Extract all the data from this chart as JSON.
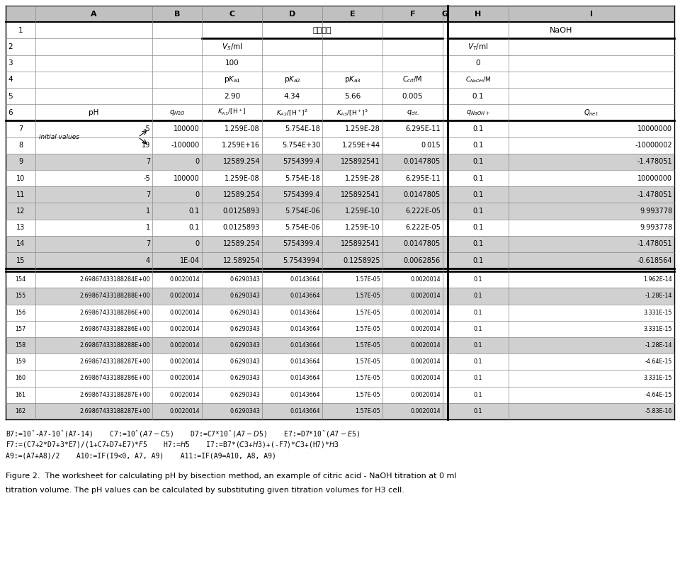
{
  "col_labels": [
    "",
    "A",
    "B",
    "C",
    "D",
    "E",
    "F",
    "G",
    "H",
    "I"
  ],
  "formula_lines": [
    "B7:=10ˆ-A7-10ˆ(A7-14)    C7:=10ˆ($A7-C$5)    D7:=C7*10ˆ($A7-D$5)    E7:=D7*10ˆ($A7-E$5)",
    "F7:=(C7+2*D7+3*E7)/(1+C7+D7+E7)*$F$5    H7:=$H$5    I7:=B7*($C$3+$H$3)+(-F7)*$C$3+(H7)*$H$3",
    "A9:=(A7+A8)/2    A10:=IF(I9<0, A7, A9)    A11:=IF(A9=A10, A8, A9)"
  ],
  "caption_line1": "Figure 2.  The worksheet for calculating pH by bisection method, an example of citric acid - NaOH titration at 0 ml",
  "caption_line2": "titration volume. The pH values can be calculated by substituting given titration volumes for H3 cell.",
  "rows_7_15_bg": [
    "#ffffff",
    "#ffffff",
    "#d0d0d0",
    "#ffffff",
    "#d0d0d0",
    "#d0d0d0",
    "#ffffff",
    "#d0d0d0",
    "#d0d0d0"
  ],
  "rows_7_15": [
    [
      "7",
      "-5",
      "100000",
      "1.259E-08",
      "5.754E-18",
      "1.259E-28",
      "6.295E-11",
      "",
      "0.1",
      "10000000"
    ],
    [
      "8",
      "19",
      "-100000",
      "1.259E+16",
      "5.754E+30",
      "1.259E+44",
      "0.015",
      "",
      "0.1",
      "-10000002"
    ],
    [
      "9",
      "7",
      "0",
      "12589.254",
      "5754399.4",
      "125892541",
      "0.0147805",
      "",
      "0.1",
      "-1.478051"
    ],
    [
      "10",
      "-5",
      "100000",
      "1.259E-08",
      "5.754E-18",
      "1.259E-28",
      "6.295E-11",
      "",
      "0.1",
      "10000000"
    ],
    [
      "11",
      "7",
      "0",
      "12589.254",
      "5754399.4",
      "125892541",
      "0.0147805",
      "",
      "0.1",
      "-1.478051"
    ],
    [
      "12",
      "1",
      "0.1",
      "0.0125893",
      "5.754E-06",
      "1.259E-10",
      "6.222E-05",
      "",
      "0.1",
      "9.993778"
    ],
    [
      "13",
      "1",
      "0.1",
      "0.0125893",
      "5.754E-06",
      "1.259E-10",
      "6.222E-05",
      "",
      "0.1",
      "9.993778"
    ],
    [
      "14",
      "7",
      "0",
      "12589.254",
      "5754399.4",
      "125892541",
      "0.0147805",
      "",
      "0.1",
      "-1.478051"
    ],
    [
      "15",
      "4",
      "1E-04",
      "12.589254",
      "5.7543994",
      "0.1258925",
      "0.0062856",
      "",
      "0.1",
      "-0.618564"
    ]
  ],
  "rows_154_162_bg": [
    "#ffffff",
    "#d0d0d0",
    "#ffffff",
    "#ffffff",
    "#d0d0d0",
    "#ffffff",
    "#ffffff",
    "#ffffff",
    "#d0d0d0"
  ],
  "rows_154_162": [
    [
      "154",
      "2.69867433188284E+00",
      "0.0020014",
      "0.6290343",
      "0.0143664",
      "1.57E-05",
      "0.0020014",
      "",
      "0.1",
      "1.962E-14"
    ],
    [
      "155",
      "2.69867433188288E+00",
      "0.0020014",
      "0.6290343",
      "0.0143664",
      "1.57E-05",
      "0.0020014",
      "",
      "0.1",
      "-1.28E-14"
    ],
    [
      "156",
      "2.69867433188286E+00",
      "0.0020014",
      "0.6290343",
      "0.0143664",
      "1.57E-05",
      "0.0020014",
      "",
      "0.1",
      "3.331E-15"
    ],
    [
      "157",
      "2.69867433188286E+00",
      "0.0020014",
      "0.6290343",
      "0.0143664",
      "1.57E-05",
      "0.0020014",
      "",
      "0.1",
      "3.331E-15"
    ],
    [
      "158",
      "2.69867433188288E+00",
      "0.0020014",
      "0.6290343",
      "0.0143664",
      "1.57E-05",
      "0.0020014",
      "",
      "0.1",
      "-1.28E-14"
    ],
    [
      "159",
      "2.69867433188287E+00",
      "0.0020014",
      "0.6290343",
      "0.0143664",
      "1.57E-05",
      "0.0020014",
      "",
      "0.1",
      "-4.64E-15"
    ],
    [
      "160",
      "2.69867433188286E+00",
      "0.0020014",
      "0.6290343",
      "0.0143664",
      "1.57E-05",
      "0.0020014",
      "",
      "0.1",
      "3.331E-15"
    ],
    [
      "161",
      "2.69867433188287E+00",
      "0.0020014",
      "0.6290343",
      "0.0143664",
      "1.57E-05",
      "0.0020014",
      "",
      "0.1",
      "-4.64E-15"
    ],
    [
      "162",
      "2.69867433188287E+00",
      "0.0020014",
      "0.6290343",
      "0.0143664",
      "1.57E-05",
      "0.0020014",
      "",
      "0.1",
      "-5.83E-16"
    ]
  ]
}
